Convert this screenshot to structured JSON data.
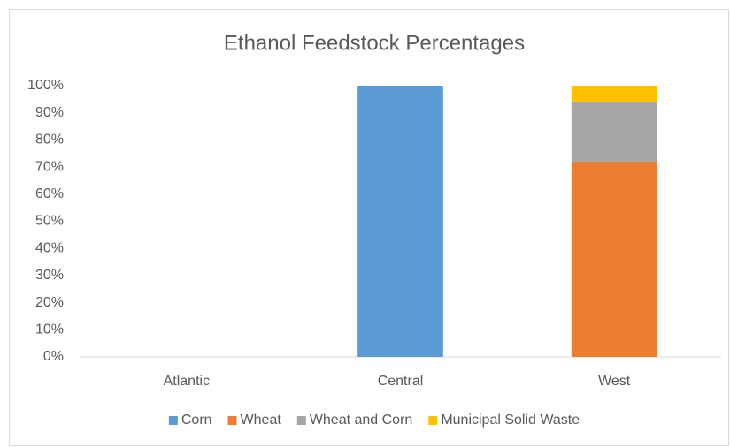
{
  "chart_data": {
    "type": "stacked_bar",
    "title": "Ethanol Feedstock Percentages",
    "categories": [
      "Atlantic",
      "Central",
      "West"
    ],
    "series": [
      {
        "name": "Corn",
        "color": "#5b9bd5",
        "values": [
          0,
          100,
          0
        ]
      },
      {
        "name": "Wheat",
        "color": "#ed7d31",
        "values": [
          0,
          0,
          72
        ]
      },
      {
        "name": "Wheat and Corn",
        "color": "#a5a5a5",
        "values": [
          0,
          0,
          22
        ]
      },
      {
        "name": "Municipal Solid Waste",
        "color": "#ffc000",
        "values": [
          0,
          0,
          6
        ]
      }
    ],
    "ylim": [
      0,
      100
    ],
    "yticks": [
      {
        "value": 0,
        "label": "0%"
      },
      {
        "value": 10,
        "label": "10%"
      },
      {
        "value": 20,
        "label": "20%"
      },
      {
        "value": 30,
        "label": "30%"
      },
      {
        "value": 40,
        "label": "40%"
      },
      {
        "value": 50,
        "label": "50%"
      },
      {
        "value": 60,
        "label": "60%"
      },
      {
        "value": 70,
        "label": "70%"
      },
      {
        "value": 80,
        "label": "80%"
      },
      {
        "value": 90,
        "label": "90%"
      },
      {
        "value": 100,
        "label": "100%"
      }
    ],
    "grid": false,
    "legend": "bottom"
  }
}
